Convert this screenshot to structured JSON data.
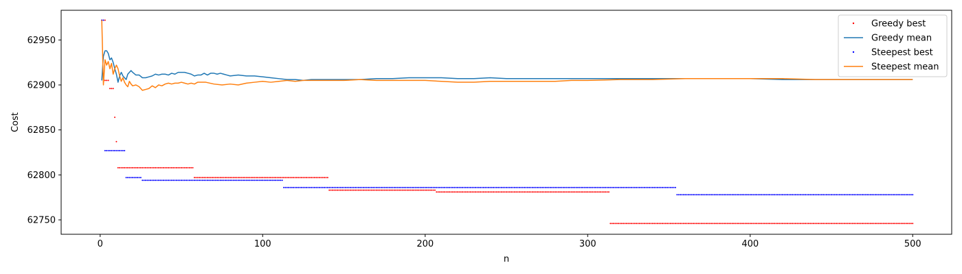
{
  "chart_data": {
    "type": "line",
    "title": "",
    "xlabel": "n",
    "ylabel": "Cost",
    "xlim": [
      -24,
      524
    ],
    "ylim": [
      62734,
      62983
    ],
    "xticks": [
      0,
      100,
      200,
      300,
      400,
      500
    ],
    "yticks": [
      62750,
      62800,
      62850,
      62900,
      62950
    ],
    "grid": false,
    "legend_position": "top-right",
    "series": [
      {
        "name": "Greedy best",
        "style": "dots",
        "color": "#ff0000",
        "steps": [
          [
            1,
            3,
            62972
          ],
          [
            3,
            5,
            62905
          ],
          [
            6,
            8,
            62896
          ],
          [
            9,
            9,
            62864
          ],
          [
            10,
            10,
            62837
          ],
          [
            11,
            57,
            62808
          ],
          [
            58,
            140,
            62797
          ],
          [
            141,
            206,
            62783
          ],
          [
            207,
            313,
            62781
          ],
          [
            314,
            500,
            62746
          ]
        ]
      },
      {
        "name": "Greedy mean",
        "style": "line",
        "color": "#1f77b4",
        "points": [
          [
            1,
            62905
          ],
          [
            2,
            62932
          ],
          [
            3,
            62938
          ],
          [
            4,
            62938
          ],
          [
            5,
            62935
          ],
          [
            6,
            62928
          ],
          [
            7,
            62930
          ],
          [
            8,
            62925
          ],
          [
            9,
            62918
          ],
          [
            10,
            62912
          ],
          [
            11,
            62903
          ],
          [
            12,
            62910
          ],
          [
            13,
            62914
          ],
          [
            14,
            62910
          ],
          [
            15,
            62908
          ],
          [
            16,
            62906
          ],
          [
            17,
            62912
          ],
          [
            18,
            62914
          ],
          [
            19,
            62916
          ],
          [
            20,
            62914
          ],
          [
            22,
            62911
          ],
          [
            24,
            62911
          ],
          [
            26,
            62908
          ],
          [
            28,
            62908
          ],
          [
            30,
            62909
          ],
          [
            32,
            62910
          ],
          [
            34,
            62912
          ],
          [
            36,
            62911
          ],
          [
            38,
            62912
          ],
          [
            40,
            62912
          ],
          [
            42,
            62911
          ],
          [
            44,
            62913
          ],
          [
            46,
            62912
          ],
          [
            48,
            62914
          ],
          [
            50,
            62914
          ],
          [
            52,
            62914
          ],
          [
            54,
            62913
          ],
          [
            56,
            62912
          ],
          [
            58,
            62910
          ],
          [
            60,
            62911
          ],
          [
            62,
            62911
          ],
          [
            64,
            62913
          ],
          [
            66,
            62911
          ],
          [
            68,
            62913
          ],
          [
            70,
            62913
          ],
          [
            72,
            62912
          ],
          [
            74,
            62913
          ],
          [
            76,
            62912
          ],
          [
            78,
            62911
          ],
          [
            80,
            62910
          ],
          [
            85,
            62911
          ],
          [
            90,
            62910
          ],
          [
            95,
            62910
          ],
          [
            100,
            62909
          ],
          [
            105,
            62908
          ],
          [
            110,
            62907
          ],
          [
            115,
            62906
          ],
          [
            120,
            62906
          ],
          [
            125,
            62905
          ],
          [
            130,
            62906
          ],
          [
            135,
            62906
          ],
          [
            140,
            62906
          ],
          [
            150,
            62906
          ],
          [
            160,
            62906
          ],
          [
            170,
            62907
          ],
          [
            180,
            62907
          ],
          [
            190,
            62908
          ],
          [
            200,
            62908
          ],
          [
            210,
            62908
          ],
          [
            220,
            62907
          ],
          [
            230,
            62907
          ],
          [
            240,
            62908
          ],
          [
            250,
            62907
          ],
          [
            260,
            62907
          ],
          [
            270,
            62907
          ],
          [
            280,
            62907
          ],
          [
            290,
            62907
          ],
          [
            300,
            62907
          ],
          [
            320,
            62907
          ],
          [
            340,
            62907
          ],
          [
            360,
            62907
          ],
          [
            380,
            62907
          ],
          [
            400,
            62907
          ],
          [
            420,
            62906
          ],
          [
            440,
            62906
          ],
          [
            460,
            62906
          ],
          [
            480,
            62906
          ],
          [
            500,
            62906
          ]
        ]
      },
      {
        "name": "Steepest best",
        "style": "dots",
        "color": "#0000ff",
        "steps": [
          [
            1,
            2,
            62972
          ],
          [
            3,
            15,
            62827
          ],
          [
            16,
            25,
            62797
          ],
          [
            26,
            112,
            62794
          ],
          [
            113,
            354,
            62786
          ],
          [
            355,
            500,
            62778
          ]
        ]
      },
      {
        "name": "Steepest mean",
        "style": "line",
        "color": "#ff7f0e",
        "points": [
          [
            1,
            62972
          ],
          [
            2,
            62900
          ],
          [
            3,
            62928
          ],
          [
            4,
            62922
          ],
          [
            5,
            62926
          ],
          [
            6,
            62918
          ],
          [
            7,
            62924
          ],
          [
            8,
            62912
          ],
          [
            9,
            62918
          ],
          [
            10,
            62922
          ],
          [
            11,
            62918
          ],
          [
            12,
            62910
          ],
          [
            13,
            62904
          ],
          [
            14,
            62908
          ],
          [
            15,
            62903
          ],
          [
            16,
            62900
          ],
          [
            17,
            62898
          ],
          [
            18,
            62904
          ],
          [
            19,
            62901
          ],
          [
            20,
            62899
          ],
          [
            22,
            62900
          ],
          [
            24,
            62898
          ],
          [
            26,
            62894
          ],
          [
            28,
            62895
          ],
          [
            30,
            62896
          ],
          [
            32,
            62899
          ],
          [
            34,
            62897
          ],
          [
            36,
            62900
          ],
          [
            38,
            62899
          ],
          [
            40,
            62901
          ],
          [
            42,
            62902
          ],
          [
            44,
            62901
          ],
          [
            46,
            62902
          ],
          [
            48,
            62902
          ],
          [
            50,
            62903
          ],
          [
            52,
            62902
          ],
          [
            54,
            62901
          ],
          [
            56,
            62902
          ],
          [
            58,
            62901
          ],
          [
            60,
            62903
          ],
          [
            65,
            62903
          ],
          [
            70,
            62901
          ],
          [
            75,
            62900
          ],
          [
            80,
            62901
          ],
          [
            85,
            62900
          ],
          [
            90,
            62902
          ],
          [
            95,
            62903
          ],
          [
            100,
            62904
          ],
          [
            105,
            62903
          ],
          [
            110,
            62904
          ],
          [
            115,
            62905
          ],
          [
            120,
            62904
          ],
          [
            125,
            62905
          ],
          [
            130,
            62905
          ],
          [
            140,
            62905
          ],
          [
            150,
            62905
          ],
          [
            160,
            62906
          ],
          [
            170,
            62905
          ],
          [
            180,
            62905
          ],
          [
            190,
            62905
          ],
          [
            200,
            62905
          ],
          [
            210,
            62904
          ],
          [
            220,
            62903
          ],
          [
            230,
            62903
          ],
          [
            240,
            62904
          ],
          [
            250,
            62904
          ],
          [
            260,
            62904
          ],
          [
            270,
            62904
          ],
          [
            280,
            62904
          ],
          [
            290,
            62905
          ],
          [
            300,
            62905
          ],
          [
            320,
            62906
          ],
          [
            340,
            62906
          ],
          [
            360,
            62907
          ],
          [
            380,
            62907
          ],
          [
            400,
            62907
          ],
          [
            420,
            62907
          ],
          [
            440,
            62906
          ],
          [
            460,
            62906
          ],
          [
            480,
            62906
          ],
          [
            500,
            62906
          ]
        ]
      }
    ]
  }
}
